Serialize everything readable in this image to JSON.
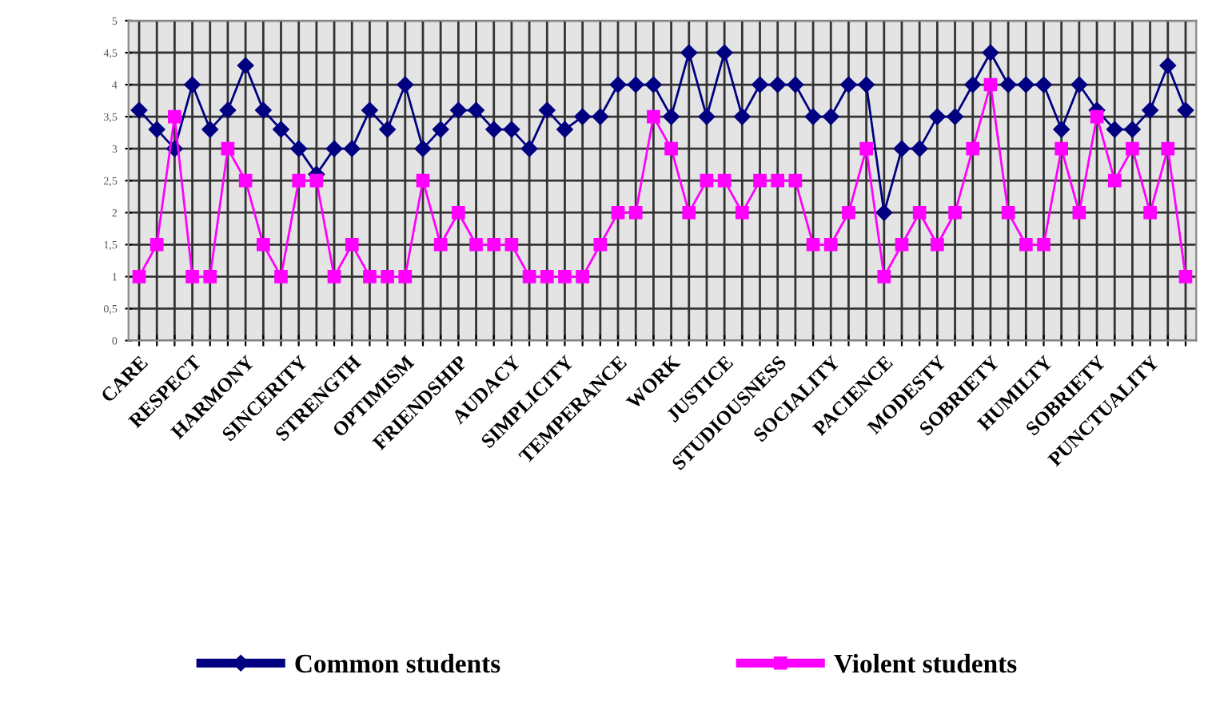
{
  "chart_data": {
    "type": "line",
    "categories": [
      "CARE",
      null,
      null,
      "RESPECT",
      null,
      null,
      "HARMONY",
      null,
      null,
      "SINCERITY",
      null,
      null,
      "STRENGTH",
      null,
      null,
      "OPTIMISM",
      null,
      null,
      "FRIENDSHIP",
      null,
      null,
      "AUDACY",
      null,
      null,
      "SIMPLICITY",
      null,
      null,
      "TEMPERANCE",
      null,
      null,
      "WORK",
      null,
      null,
      "JUSTICE",
      null,
      null,
      "STUDIOUSNESS",
      null,
      null,
      "SOCIALITY",
      null,
      null,
      "PACIENCE",
      null,
      null,
      "MODESTY",
      null,
      null,
      "SOBRIETY",
      null,
      null,
      "HUMILTY",
      null,
      null,
      "SOBRIETY",
      null,
      null,
      "PUNCTUALITY",
      null,
      null
    ],
    "series": [
      {
        "name": "Common students",
        "color": "#000080",
        "marker": "diamond",
        "values": [
          3.6,
          3.3,
          3.0,
          4.0,
          3.3,
          3.6,
          4.3,
          3.6,
          3.3,
          3.0,
          2.6,
          3.0,
          3.0,
          3.6,
          3.3,
          4.0,
          3.0,
          3.3,
          3.6,
          3.6,
          3.3,
          3.3,
          3.0,
          3.6,
          3.3,
          3.5,
          3.5,
          4.0,
          4.0,
          4.0,
          3.5,
          4.5,
          3.5,
          4.5,
          3.5,
          4.0,
          4.0,
          4.0,
          3.5,
          3.5,
          4.0,
          4.0,
          2.0,
          3.0,
          3.0,
          3.5,
          3.5,
          4.0,
          4.5,
          4.0,
          4.0,
          4.0,
          3.3,
          4.0,
          3.6,
          3.3,
          3.3,
          3.6,
          4.3,
          3.6
        ]
      },
      {
        "name": "Violent students",
        "color": "#ff00ff",
        "marker": "square",
        "values": [
          1.0,
          1.5,
          3.5,
          1.0,
          1.0,
          3.0,
          2.5,
          1.5,
          1.0,
          2.5,
          2.5,
          1.0,
          1.5,
          1.0,
          1.0,
          1.0,
          2.5,
          1.5,
          2.0,
          1.5,
          1.5,
          1.5,
          1.0,
          1.0,
          1.0,
          1.0,
          1.5,
          2.0,
          2.0,
          3.5,
          3.0,
          2.0,
          2.5,
          2.5,
          2.0,
          2.5,
          2.5,
          2.5,
          1.5,
          1.5,
          2.0,
          3.0,
          1.0,
          1.5,
          2.0,
          1.5,
          2.0,
          3.0,
          4.0,
          2.0,
          1.5,
          1.5,
          3.0,
          2.0,
          3.5,
          2.5,
          3.0,
          2.0,
          3.0,
          1.0
        ]
      }
    ],
    "ylim": [
      0,
      5
    ],
    "yticks": [
      0,
      {
        "value": 0.5,
        "label": "0,5"
      },
      1,
      {
        "value": 1.5,
        "label": "1,5"
      },
      2,
      {
        "value": 2.5,
        "label": "2,5"
      },
      3,
      {
        "value": 3.5,
        "label": "3,5"
      },
      4,
      {
        "value": 4.5,
        "label": "4,5"
      },
      5
    ],
    "grid": true,
    "legend": "bottom",
    "line_style": "solid"
  }
}
